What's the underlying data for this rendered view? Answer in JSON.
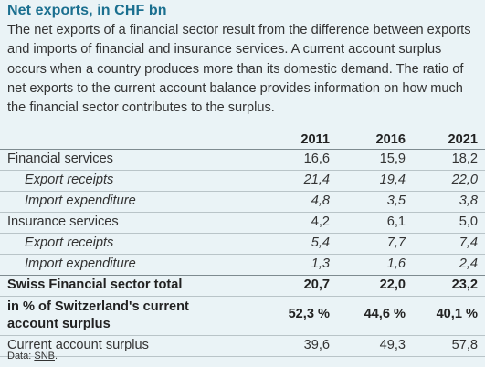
{
  "title": "Net exports, in CHF bn",
  "description": "The net exports of a financial sector result from the difference between exports and imports of financial and insurance services. A current account surplus occurs when a country produces more than its domestic demand. The ratio of net exports to the current account balance provides information on how much the financial sector contributes to the surplus.",
  "table": {
    "columns": [
      "2011",
      "2016",
      "2021"
    ],
    "rows": [
      {
        "label": "Financial services",
        "values": [
          "16,6",
          "15,9",
          "18,2"
        ]
      },
      {
        "label": "Export receipts",
        "values": [
          "21,4",
          "19,4",
          "22,0"
        ]
      },
      {
        "label": "Import expenditure",
        "values": [
          "4,8",
          "3,5",
          "3,8"
        ]
      },
      {
        "label": "Insurance services",
        "values": [
          "4,2",
          "6,1",
          "5,0"
        ]
      },
      {
        "label": "Export receipts",
        "values": [
          "5,4",
          "7,7",
          "7,4"
        ]
      },
      {
        "label": "Import expenditure",
        "values": [
          "1,3",
          "1,6",
          "2,4"
        ]
      },
      {
        "label": "Swiss Financial sector total",
        "values": [
          "20,7",
          "22,0",
          "23,2"
        ]
      },
      {
        "label": "in % of Switzerland's current account surplus",
        "values": [
          "52,3 %",
          "44,6 %",
          "40,1 %"
        ]
      },
      {
        "label": "Current account surplus",
        "values": [
          "39,6",
          "49,3",
          "57,8"
        ]
      }
    ]
  },
  "source": {
    "prefix": "Data: ",
    "link": "SNB",
    "suffix": "."
  }
}
